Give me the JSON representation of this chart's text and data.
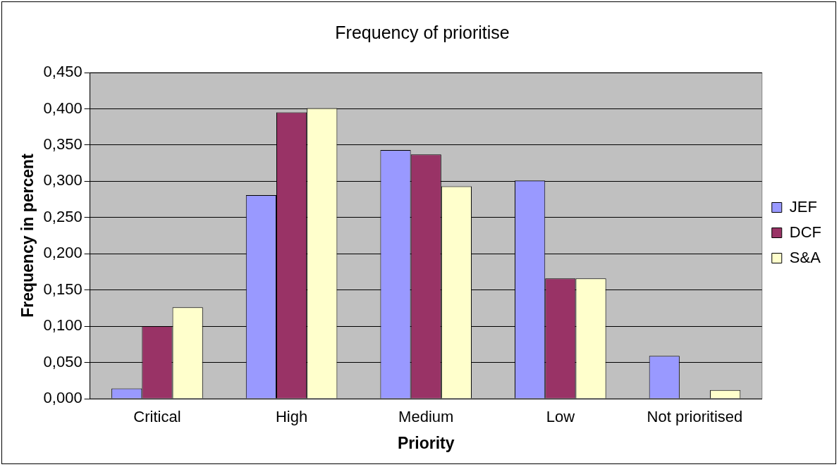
{
  "chart_data": {
    "type": "bar",
    "title": "Frequency of prioritise",
    "xlabel": "Priority",
    "ylabel": "Frequency in percent",
    "categories": [
      "Critical",
      "High",
      "Medium",
      "Low",
      "Not prioritised"
    ],
    "series": [
      {
        "name": "JEF",
        "color": "#9999ff",
        "values": [
          0.014,
          0.281,
          0.343,
          0.301,
          0.059
        ]
      },
      {
        "name": "DCF",
        "color": "#993366",
        "values": [
          0.1,
          0.395,
          0.337,
          0.166,
          0
        ]
      },
      {
        "name": "S&A",
        "color": "#ffffcc",
        "values": [
          0.126,
          0.401,
          0.293,
          0.166,
          0.012
        ]
      }
    ],
    "ylim": [
      0,
      0.45
    ],
    "yticks": [
      {
        "value": 0,
        "label": "0,000"
      },
      {
        "value": 0.05,
        "label": "0,050"
      },
      {
        "value": 0.1,
        "label": "0,100"
      },
      {
        "value": 0.15,
        "label": "0,150"
      },
      {
        "value": 0.2,
        "label": "0,200"
      },
      {
        "value": 0.25,
        "label": "0,250"
      },
      {
        "value": 0.3,
        "label": "0,300"
      },
      {
        "value": 0.35,
        "label": "0,350"
      },
      {
        "value": 0.4,
        "label": "0,400"
      },
      {
        "value": 0.45,
        "label": "0,450"
      }
    ],
    "grid": "y",
    "legend": "right"
  }
}
